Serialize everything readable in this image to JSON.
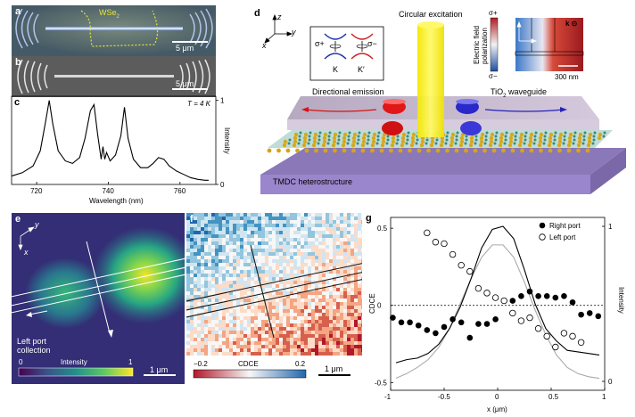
{
  "panel_a": {
    "label": "a",
    "material": "WSe",
    "material_sub": "2",
    "scale": "5 μm"
  },
  "panel_b": {
    "label": "b",
    "scale": "5 μm"
  },
  "panel_c": {
    "label": "c",
    "temperature": "T = 4 K",
    "ylabel": "Intensity",
    "xlabel": "Wavelength (nm)"
  },
  "panel_d": {
    "label": "d",
    "axis_z": "z",
    "axis_y": "y",
    "axis_x": "x",
    "valley_k": "K",
    "valley_kp": "K′",
    "sigma_plus": "σ+",
    "sigma_minus": "σ−",
    "circular_excitation": "Circular excitation",
    "directional_emission": "Directional emission",
    "waveguide": "TiO",
    "waveguide_sub": "2",
    "waveguide_suffix": " waveguide",
    "heterostructure": "TMDC heterostructure",
    "field_label_1": "Electric field",
    "field_label_2": "polarization",
    "field_top": "σ+",
    "field_bottom": "σ−",
    "field_k": "k ⊙",
    "field_scale": "300 nm"
  },
  "panel_e": {
    "label": "e",
    "axis_y": "y",
    "axis_x": "x",
    "caption_1": "Left port",
    "caption_2": "collection",
    "cbar_min": "0",
    "cbar_title": "Intensity",
    "cbar_max": "1",
    "scale": "1 μm"
  },
  "panel_f": {
    "label": "f",
    "cbar_min": "−0.2",
    "cbar_title": "CDCE",
    "cbar_max": "0.2",
    "scale": "1 μm"
  },
  "panel_g": {
    "label": "g",
    "ylabel_left": "CDCE",
    "ylabel_right": "Intensity"
  },
  "chart_data": [
    {
      "type": "line",
      "title": "",
      "xlabel": "Wavelength (nm)",
      "ylabel": "Intensity",
      "xlim": [
        713,
        770
      ],
      "ylim": [
        0,
        1.05
      ],
      "xticks": [
        720,
        740,
        760
      ],
      "yticks": [
        0,
        1
      ],
      "series": [
        {
          "name": "PL spectrum",
          "x": [
            713,
            716,
            719,
            721,
            722.5,
            723.5,
            724.5,
            726,
            728,
            730,
            732,
            733.5,
            735,
            736,
            737,
            738,
            738.5,
            739,
            739.5,
            740.5,
            742,
            743.5,
            744.5,
            745.5,
            747,
            749,
            751,
            752.5,
            754,
            755.5,
            757,
            759,
            761,
            763,
            765,
            767,
            768
          ],
          "y": [
            0.1,
            0.14,
            0.22,
            0.4,
            0.75,
            1.0,
            0.72,
            0.4,
            0.28,
            0.25,
            0.32,
            0.55,
            0.88,
            0.95,
            0.6,
            0.3,
            0.45,
            0.3,
            0.38,
            0.28,
            0.35,
            0.58,
            0.92,
            0.55,
            0.3,
            0.2,
            0.2,
            0.25,
            0.32,
            0.3,
            0.22,
            0.16,
            0.12,
            0.08,
            0.06,
            0.05,
            0.05
          ]
        }
      ]
    },
    {
      "type": "scatter",
      "title": "",
      "xlabel": "x (μm)",
      "ylabel": "CDCE",
      "ylim": [
        -0.55,
        0.57
      ],
      "xlim": [
        -1.0,
        1.0
      ],
      "xticks": [
        -1,
        -0.5,
        0,
        0.5,
        1
      ],
      "yticks": [
        -0.5,
        0,
        0.5
      ],
      "y2label": "Intensity",
      "y2ticks": [
        0,
        1
      ],
      "series": [
        {
          "name": "Right port",
          "marker": "filled",
          "x": [
            -0.98,
            -0.9,
            -0.82,
            -0.74,
            -0.66,
            -0.58,
            -0.5,
            -0.42,
            -0.34,
            -0.26,
            -0.18,
            -0.1,
            -0.02,
            0.06,
            0.14,
            0.22,
            0.3,
            0.38,
            0.46,
            0.54,
            0.62,
            0.7,
            0.78,
            0.86,
            0.94
          ],
          "y": [
            -0.08,
            -0.11,
            -0.11,
            -0.13,
            -0.16,
            -0.18,
            -0.14,
            -0.09,
            -0.11,
            -0.21,
            -0.12,
            -0.12,
            -0.09,
            0.03,
            0.03,
            0.06,
            0.09,
            0.06,
            0.06,
            0.05,
            0.06,
            0.02,
            -0.06,
            -0.05,
            -0.07
          ]
        },
        {
          "name": "Left port",
          "marker": "open",
          "x": [
            -0.98,
            -0.9,
            -0.82,
            -0.74,
            -0.66,
            -0.58,
            -0.5,
            -0.42,
            -0.34,
            -0.26,
            -0.18,
            -0.1,
            -0.02,
            0.06,
            0.14,
            0.22,
            0.3,
            0.38,
            0.46,
            0.54,
            0.62,
            0.7,
            0.78
          ],
          "y": [
            null,
            null,
            null,
            null,
            0.47,
            0.41,
            0.4,
            0.33,
            0.26,
            0.22,
            0.11,
            0.08,
            0.05,
            0.03,
            -0.05,
            -0.1,
            -0.08,
            -0.15,
            -0.2,
            -0.27,
            -0.18,
            -0.2,
            -0.24
          ]
        },
        {
          "name": "Intensity (black)",
          "marker": "line",
          "x": [
            -0.95,
            -0.85,
            -0.75,
            -0.65,
            -0.55,
            -0.45,
            -0.35,
            -0.25,
            -0.15,
            -0.05,
            0.05,
            0.15,
            0.25,
            0.35,
            0.45,
            0.55,
            0.65,
            0.75,
            0.85,
            0.95
          ],
          "y": [
            0.12,
            0.14,
            0.15,
            0.18,
            0.24,
            0.34,
            0.48,
            0.66,
            0.86,
            0.98,
            1.0,
            0.92,
            0.72,
            0.5,
            0.34,
            0.26,
            0.2,
            0.19,
            0.18,
            0.17
          ]
        },
        {
          "name": "Intensity (gray)",
          "marker": "line",
          "x": [
            -0.95,
            -0.85,
            -0.75,
            -0.65,
            -0.55,
            -0.45,
            -0.35,
            -0.25,
            -0.15,
            -0.05,
            0.05,
            0.15,
            0.25,
            0.35,
            0.45,
            0.55,
            0.65,
            0.75,
            0.85,
            0.95
          ],
          "y": [
            0.02,
            0.05,
            0.09,
            0.14,
            0.22,
            0.34,
            0.5,
            0.66,
            0.8,
            0.88,
            0.88,
            0.8,
            0.64,
            0.46,
            0.3,
            0.17,
            0.09,
            0.05,
            0.03,
            0.02
          ]
        }
      ],
      "legend": [
        "Right port",
        "Left port"
      ],
      "legend_position": "top-right"
    }
  ]
}
